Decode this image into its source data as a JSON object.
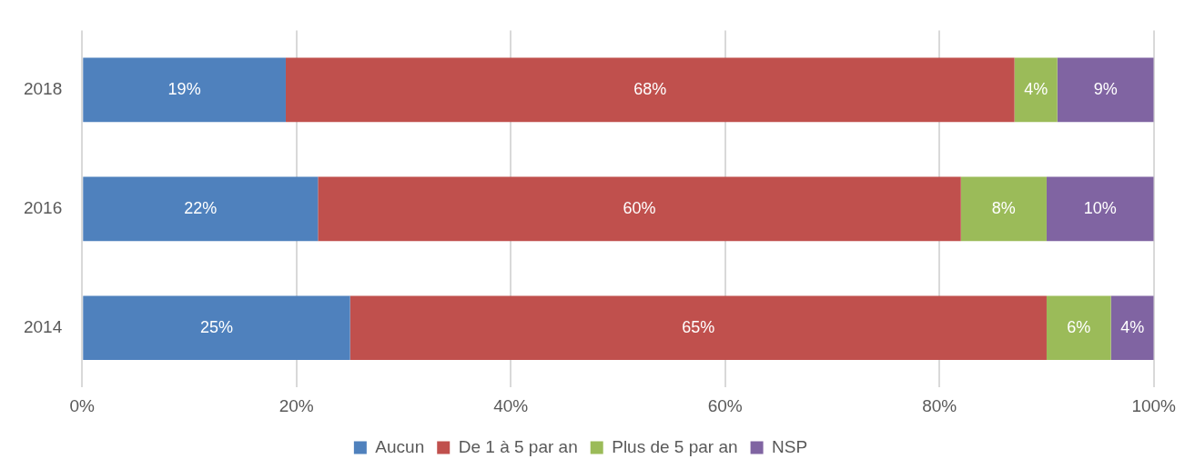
{
  "chart_data": {
    "type": "bar",
    "orientation": "horizontal",
    "stacked": true,
    "categories": [
      "2018",
      "2016",
      "2014"
    ],
    "series": [
      {
        "name": "Aucun",
        "color": "#4f81bd",
        "values": [
          19,
          22,
          25
        ],
        "value_labels": [
          "19%",
          "22%",
          "25%"
        ]
      },
      {
        "name": "De 1 à 5 par an",
        "color": "#c0504d",
        "values": [
          68,
          60,
          65
        ],
        "value_labels": [
          "68%",
          "60%",
          "65%"
        ]
      },
      {
        "name": "Plus de 5 par an",
        "color": "#9bbb59",
        "values": [
          4,
          8,
          6
        ],
        "value_labels": [
          "4%",
          "8%",
          "6%"
        ]
      },
      {
        "name": "NSP",
        "color": "#8064a2",
        "values": [
          9,
          10,
          4
        ],
        "value_labels": [
          "9%",
          "10%",
          "4%"
        ]
      }
    ],
    "xlim": [
      0,
      100
    ],
    "xticks": [
      {
        "value": 0,
        "label": "0%"
      },
      {
        "value": 20,
        "label": "20%"
      },
      {
        "value": 40,
        "label": "40%"
      },
      {
        "value": 60,
        "label": "60%"
      },
      {
        "value": 80,
        "label": "80%"
      },
      {
        "value": 100,
        "label": "100%"
      }
    ],
    "grid": "x",
    "legend": "bottom"
  }
}
